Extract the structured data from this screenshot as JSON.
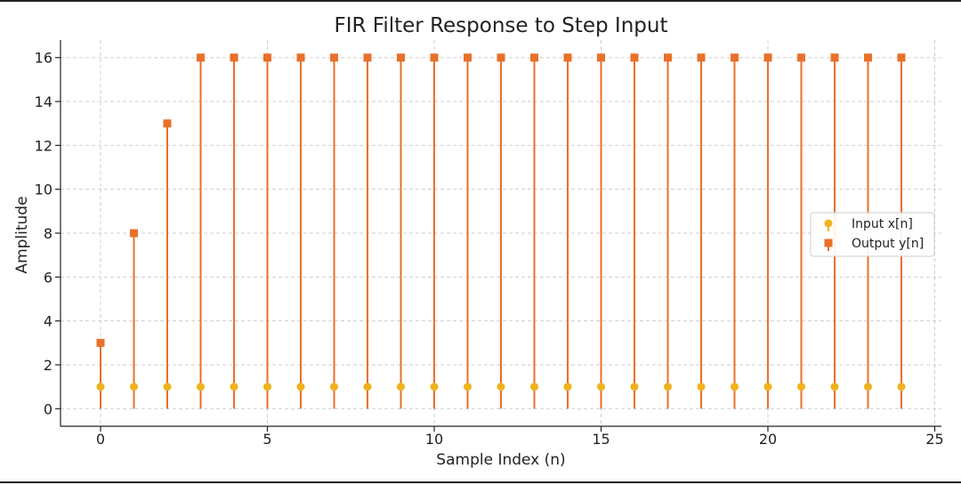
{
  "chart_data": {
    "type": "stem",
    "title": "FIR Filter Response to Step Input",
    "xlabel": "Sample Index (n)",
    "ylabel": "Amplitude",
    "xlim": [
      -1.2,
      25.2
    ],
    "ylim": [
      -0.8,
      16.8
    ],
    "xticks": [
      0,
      5,
      10,
      15,
      20,
      25
    ],
    "yticks": [
      0,
      2,
      4,
      6,
      8,
      10,
      12,
      14,
      16
    ],
    "grid": true,
    "legend_position": "center-right",
    "x": [
      0,
      1,
      2,
      3,
      4,
      5,
      6,
      7,
      8,
      9,
      10,
      11,
      12,
      13,
      14,
      15,
      16,
      17,
      18,
      19,
      20,
      21,
      22,
      23,
      24
    ],
    "series": [
      {
        "name": "Input x[n]",
        "marker": "circle",
        "color": "#F0B21E",
        "values": [
          1,
          1,
          1,
          1,
          1,
          1,
          1,
          1,
          1,
          1,
          1,
          1,
          1,
          1,
          1,
          1,
          1,
          1,
          1,
          1,
          1,
          1,
          1,
          1,
          1
        ]
      },
      {
        "name": "Output y[n]",
        "marker": "square",
        "color": "#E8702A",
        "values": [
          3,
          8,
          13,
          16,
          16,
          16,
          16,
          16,
          16,
          16,
          16,
          16,
          16,
          16,
          16,
          16,
          16,
          16,
          16,
          16,
          16,
          16,
          16,
          16,
          16
        ]
      }
    ]
  }
}
